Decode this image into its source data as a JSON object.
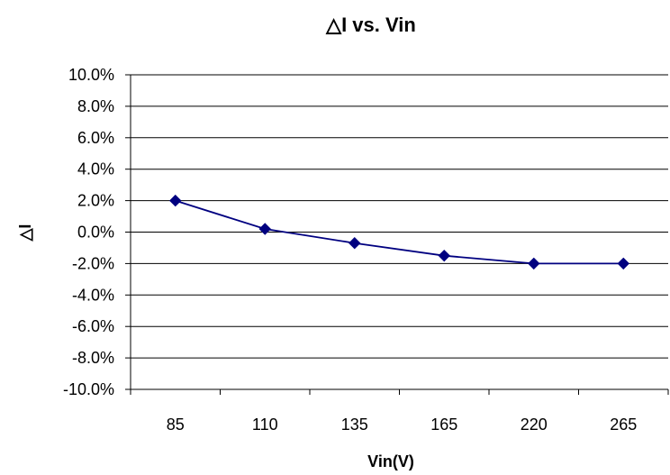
{
  "chart_data": {
    "type": "line",
    "title": "△I vs. Vin",
    "xlabel": "Vin(V)",
    "ylabel": "△I",
    "categories": [
      "85",
      "110",
      "135",
      "165",
      "220",
      "265"
    ],
    "series": [
      {
        "values": [
          2.0,
          0.2,
          -0.7,
          -1.5,
          -2.0,
          -2.0
        ]
      }
    ],
    "yticks": [
      "10.0%",
      "8.0%",
      "6.0%",
      "4.0%",
      "2.0%",
      "0.0%",
      "-2.0%",
      "-4.0%",
      "-6.0%",
      "-8.0%",
      "-10.0%"
    ],
    "ylim": [
      -10,
      10
    ],
    "grid": true,
    "legend": "none",
    "colors": {
      "series": "#000080",
      "grid": "#000000"
    }
  }
}
